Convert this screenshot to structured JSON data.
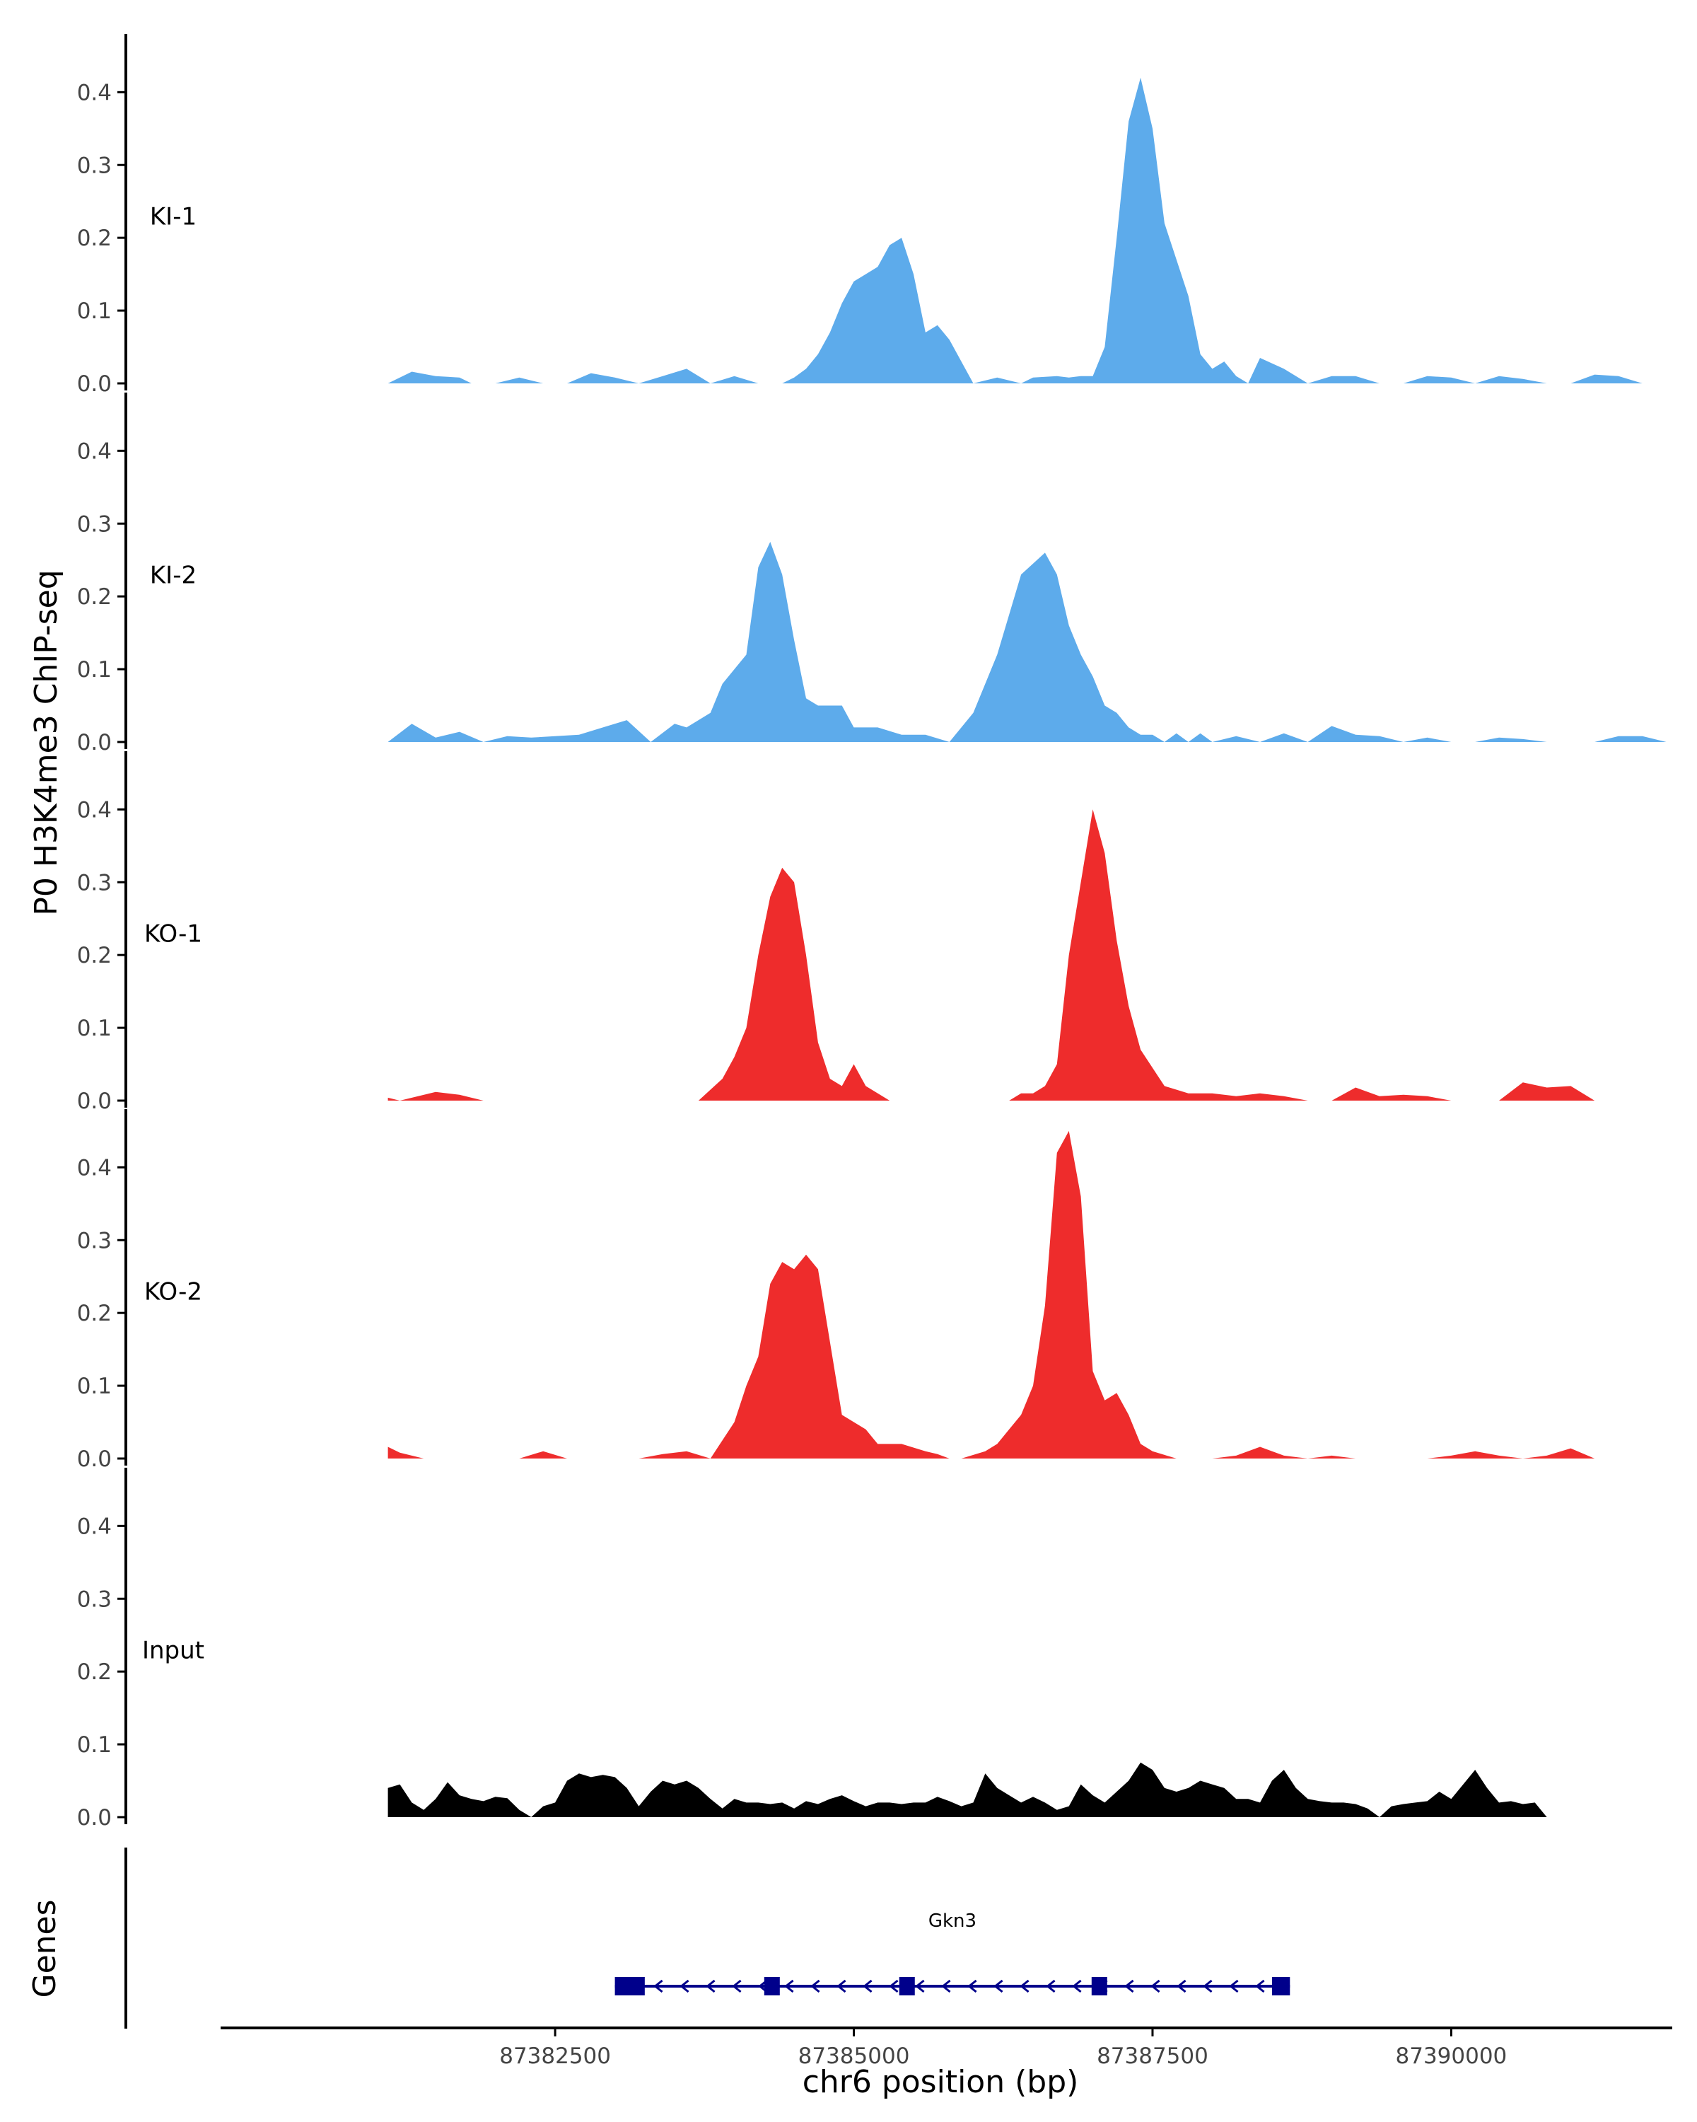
{
  "chart_data": {
    "type": "area",
    "title": "",
    "ylabel": "P0 H3K4me3 ChIP-seq",
    "xlabel": "chr6 position (bp)",
    "genes_label": "Genes",
    "xlim": [
      87379700,
      87391850
    ],
    "ylim": [
      0,
      0.48
    ],
    "x_ticks": [
      87382500,
      87385000,
      87387500,
      87390000
    ],
    "x_tick_labels": [
      "87382500",
      "87385000",
      "87387500",
      "87390000"
    ],
    "y_ticks": [
      0.0,
      0.1,
      0.2,
      0.3,
      0.4
    ],
    "y_tick_labels": [
      "0.0",
      "0.1",
      "0.2",
      "0.3",
      "0.4"
    ],
    "colors": {
      "KI": "#5dabeb",
      "KO": "#ee2c2c",
      "Input": "#000000",
      "gene": "#00008b"
    },
    "tracks": [
      {
        "name": "KI-1",
        "color": "#5dabeb",
        "x": [
          87381100,
          87381300,
          87381500,
          87381700,
          87381800,
          87382000,
          87382200,
          87382400,
          87382600,
          87382800,
          87383000,
          87383200,
          87383400,
          87383600,
          87383800,
          87384000,
          87384200,
          87384400,
          87384500,
          87384600,
          87384700,
          87384800,
          87384900,
          87385000,
          87385100,
          87385200,
          87385300,
          87385400,
          87385500,
          87385600,
          87385700,
          87385800,
          87386000,
          87386200,
          87386400,
          87386500,
          87386700,
          87386800,
          87386900,
          87387000,
          87387100,
          87387200,
          87387300,
          87387400,
          87387500,
          87387600,
          87387700,
          87387800,
          87387900,
          87388000,
          87388100,
          87388200,
          87388300,
          87388400,
          87388600,
          87388800,
          87389000,
          87389200,
          87389400,
          87389600,
          87389800,
          87390000,
          87390200,
          87390400,
          87390600,
          87390800,
          87391000,
          87391200,
          87391400,
          87391600
        ],
        "values": [
          0.0,
          0.016,
          0.01,
          0.008,
          0.0,
          0.0,
          0.008,
          0.0,
          0.0,
          0.014,
          0.008,
          0.0,
          0.01,
          0.02,
          0.0,
          0.01,
          0.0,
          0.0,
          0.008,
          0.02,
          0.04,
          0.07,
          0.11,
          0.14,
          0.15,
          0.16,
          0.19,
          0.2,
          0.15,
          0.07,
          0.08,
          0.06,
          0.0,
          0.008,
          0.0,
          0.008,
          0.01,
          0.008,
          0.01,
          0.01,
          0.05,
          0.2,
          0.36,
          0.42,
          0.35,
          0.22,
          0.17,
          0.12,
          0.04,
          0.02,
          0.03,
          0.01,
          0.0,
          0.035,
          0.02,
          0.0,
          0.01,
          0.01,
          0.0,
          0.0,
          0.01,
          0.008,
          0.0,
          0.01,
          0.006,
          0.0,
          0.0,
          0.012,
          0.01,
          0.0
        ]
      },
      {
        "name": "KI-2",
        "color": "#5dabeb",
        "x": [
          87381100,
          87381300,
          87381500,
          87381700,
          87381900,
          87382100,
          87382300,
          87382500,
          87382700,
          87382900,
          87383100,
          87383300,
          87383500,
          87383600,
          87383800,
          87383900,
          87384000,
          87384100,
          87384200,
          87384300,
          87384400,
          87384500,
          87384600,
          87384700,
          87384800,
          87384900,
          87385000,
          87385200,
          87385400,
          87385600,
          87385800,
          87386000,
          87386200,
          87386400,
          87386600,
          87386700,
          87386800,
          87386900,
          87387000,
          87387100,
          87387200,
          87387300,
          87387400,
          87387500,
          87387600,
          87387700,
          87387800,
          87387900,
          87388000,
          87388200,
          87388400,
          87388600,
          87388800,
          87389000,
          87389200,
          87389400,
          87389600,
          87389800,
          87390000,
          87390200,
          87390400,
          87390600,
          87390800,
          87391000,
          87391200,
          87391400,
          87391600,
          87391800
        ],
        "values": [
          0.0,
          0.025,
          0.006,
          0.014,
          0.0,
          0.008,
          0.006,
          0.008,
          0.01,
          0.02,
          0.03,
          0.0,
          0.025,
          0.02,
          0.04,
          0.08,
          0.1,
          0.12,
          0.24,
          0.275,
          0.23,
          0.14,
          0.06,
          0.05,
          0.05,
          0.05,
          0.02,
          0.02,
          0.01,
          0.01,
          0.0,
          0.04,
          0.12,
          0.23,
          0.26,
          0.23,
          0.16,
          0.12,
          0.09,
          0.05,
          0.04,
          0.02,
          0.01,
          0.01,
          0.0,
          0.012,
          0.0,
          0.012,
          0.0,
          0.008,
          0.0,
          0.012,
          0.0,
          0.022,
          0.01,
          0.008,
          0.0,
          0.006,
          0.0,
          0.0,
          0.006,
          0.004,
          0.0,
          0.0,
          0.0,
          0.008,
          0.008,
          0.0
        ]
      },
      {
        "name": "KO-1",
        "color": "#ee2c2c",
        "x": [
          87381100,
          87381200,
          87381500,
          87381700,
          87381900,
          87382100,
          87382300,
          87382500,
          87382700,
          87382900,
          87383100,
          87383300,
          87383500,
          87383700,
          87383900,
          87384000,
          87384100,
          87384200,
          87384300,
          87384400,
          87384500,
          87384600,
          87384700,
          87384800,
          87384900,
          87385000,
          87385100,
          87385300,
          87385500,
          87385700,
          87385800,
          87385900,
          87386000,
          87386100,
          87386200,
          87386300,
          87386400,
          87386500,
          87386600,
          87386700,
          87386800,
          87386900,
          87387000,
          87387100,
          87387200,
          87387300,
          87387400,
          87387600,
          87387800,
          87388000,
          87388200,
          87388400,
          87388600,
          87388800,
          87389000,
          87389200,
          87389400,
          87389600,
          87389800,
          87390000,
          87390200,
          87390400,
          87390600,
          87390800,
          87391000,
          87391200
        ],
        "values": [
          0.004,
          0.0,
          0.012,
          0.008,
          0.0,
          0.0,
          0.0,
          0.0,
          0.0,
          0.0,
          0.0,
          0.0,
          0.0,
          0.0,
          0.03,
          0.06,
          0.1,
          0.2,
          0.28,
          0.32,
          0.3,
          0.2,
          0.08,
          0.03,
          0.02,
          0.05,
          0.02,
          0.0,
          0.0,
          0.0,
          0.0,
          0.0,
          0.0,
          0.0,
          0.0,
          0.0,
          0.01,
          0.01,
          0.02,
          0.05,
          0.2,
          0.3,
          0.4,
          0.34,
          0.22,
          0.13,
          0.07,
          0.02,
          0.01,
          0.01,
          0.006,
          0.01,
          0.006,
          0.0,
          0.0,
          0.018,
          0.006,
          0.008,
          0.006,
          0.0,
          0.0,
          0.0,
          0.025,
          0.018,
          0.02,
          0.0
        ]
      },
      {
        "name": "KO-2",
        "color": "#ee2c2c",
        "x": [
          87381100,
          87381200,
          87381400,
          87381600,
          87381800,
          87382000,
          87382200,
          87382400,
          87382600,
          87382800,
          87383000,
          87383200,
          87383400,
          87383600,
          87383800,
          87384000,
          87384100,
          87384200,
          87384300,
          87384400,
          87384500,
          87384600,
          87384700,
          87384800,
          87384900,
          87385000,
          87385100,
          87385200,
          87385400,
          87385600,
          87385700,
          87385800,
          87385900,
          87386000,
          87386100,
          87386200,
          87386300,
          87386400,
          87386500,
          87386600,
          87386700,
          87386800,
          87386900,
          87387000,
          87387100,
          87387200,
          87387300,
          87387400,
          87387500,
          87387600,
          87387700,
          87387800,
          87388000,
          87388200,
          87388400,
          87388600,
          87388800,
          87389000,
          87389200,
          87389400,
          87389600,
          87389800,
          87390000,
          87390200,
          87390400,
          87390600,
          87390800,
          87391000,
          87391200
        ],
        "values": [
          0.016,
          0.008,
          0.0,
          0.0,
          0.0,
          0.0,
          0.0,
          0.01,
          0.0,
          0.0,
          0.0,
          0.0,
          0.006,
          0.01,
          0.0,
          0.05,
          0.1,
          0.14,
          0.24,
          0.27,
          0.26,
          0.28,
          0.26,
          0.16,
          0.06,
          0.05,
          0.04,
          0.02,
          0.02,
          0.01,
          0.006,
          0.0,
          0.0,
          0.005,
          0.01,
          0.02,
          0.04,
          0.06,
          0.1,
          0.21,
          0.42,
          0.45,
          0.36,
          0.12,
          0.08,
          0.09,
          0.06,
          0.02,
          0.01,
          0.005,
          0.0,
          0.0,
          0.0,
          0.004,
          0.016,
          0.004,
          0.0,
          0.004,
          0.0,
          0.0,
          0.0,
          0.0,
          0.004,
          0.01,
          0.004,
          0.0,
          0.004,
          0.014,
          0.0
        ]
      },
      {
        "name": "Input",
        "color": "#000000",
        "x": [
          87381100,
          87381200,
          87381300,
          87381400,
          87381500,
          87381600,
          87381700,
          87381800,
          87381900,
          87382000,
          87382100,
          87382200,
          87382300,
          87382400,
          87382500,
          87382600,
          87382700,
          87382800,
          87382900,
          87383000,
          87383100,
          87383200,
          87383300,
          87383400,
          87383500,
          87383600,
          87383700,
          87383800,
          87383900,
          87384000,
          87384100,
          87384200,
          87384300,
          87384400,
          87384500,
          87384600,
          87384700,
          87384800,
          87384900,
          87385000,
          87385100,
          87385200,
          87385300,
          87385400,
          87385500,
          87385600,
          87385700,
          87385800,
          87385900,
          87386000,
          87386100,
          87386200,
          87386300,
          87386400,
          87386500,
          87386600,
          87386700,
          87386800,
          87386900,
          87387000,
          87387100,
          87387200,
          87387300,
          87387400,
          87387500,
          87387600,
          87387700,
          87387800,
          87387900,
          87388000,
          87388100,
          87388200,
          87388300,
          87388400,
          87388500,
          87388600,
          87388700,
          87388800,
          87388900,
          87389000,
          87389100,
          87389200,
          87389300,
          87389400,
          87389500,
          87389600,
          87389700,
          87389800,
          87389900,
          87390000,
          87390100,
          87390200,
          87390300,
          87390400,
          87390500,
          87390600,
          87390700,
          87390800,
          87390900,
          87391000,
          87391100,
          87391200,
          87391300,
          87391400,
          87391500,
          87391600,
          87391700,
          87391800
        ],
        "values": [
          0.04,
          0.045,
          0.02,
          0.01,
          0.025,
          0.048,
          0.03,
          0.025,
          0.022,
          0.028,
          0.026,
          0.01,
          0.0,
          0.015,
          0.02,
          0.05,
          0.06,
          0.055,
          0.058,
          0.055,
          0.04,
          0.015,
          0.035,
          0.05,
          0.045,
          0.05,
          0.04,
          0.025,
          0.012,
          0.025,
          0.02,
          0.02,
          0.018,
          0.02,
          0.012,
          0.022,
          0.018,
          0.025,
          0.03,
          0.022,
          0.015,
          0.02,
          0.02,
          0.018,
          0.02,
          0.02,
          0.028,
          0.022,
          0.015,
          0.02,
          0.06,
          0.04,
          0.03,
          0.02,
          0.028,
          0.02,
          0.01,
          0.015,
          0.045,
          0.03,
          0.02,
          0.035,
          0.05,
          0.075,
          0.065,
          0.04,
          0.035,
          0.04,
          0.05,
          0.045,
          0.04,
          0.025,
          0.025,
          0.02,
          0.05,
          0.065,
          0.04,
          0.025,
          0.022,
          0.02,
          0.02,
          0.018,
          0.012,
          0.0,
          0.015,
          0.018,
          0.02,
          0.022,
          0.035,
          0.025,
          0.045,
          0.065,
          0.04,
          0.02,
          0.022,
          0.018,
          0.02,
          0.0,
          0.0,
          0.0,
          0.0,
          0.0,
          0.0,
          0.0,
          0.0,
          0.0,
          0.0,
          0.0
        ]
      }
    ],
    "gene": {
      "name": "Gkn3",
      "strand": "-",
      "start": 87383000,
      "end": 87388650,
      "exons": [
        [
          87383000,
          87383250
        ],
        [
          87384250,
          87384380
        ],
        [
          87385380,
          87385480
        ],
        [
          87386990,
          87387110
        ],
        [
          87388500,
          87388650
        ]
      ]
    }
  }
}
